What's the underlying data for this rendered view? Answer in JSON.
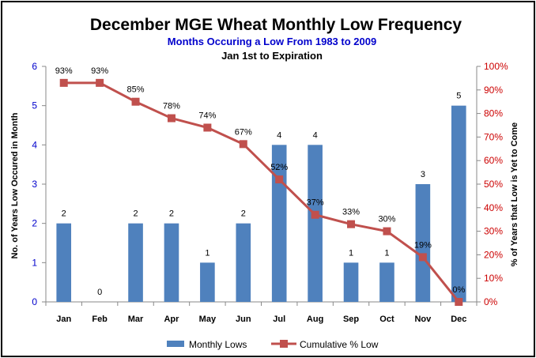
{
  "chart_data": {
    "type": "bar+line",
    "title": "December MGE Wheat Monthly Low Frequency",
    "subtitle": "Months Occuring  a Low From 1983  to 2009",
    "subtitle2": "Jan 1st to Expiration",
    "categories": [
      "Jan",
      "Feb",
      "Mar",
      "Apr",
      "May",
      "Jun",
      "Jul",
      "Aug",
      "Sep",
      "Oct",
      "Nov",
      "Dec"
    ],
    "series": [
      {
        "name": "Monthly Lows",
        "type": "bar",
        "axis": "left",
        "values": [
          2,
          0,
          2,
          2,
          1,
          2,
          4,
          4,
          1,
          1,
          3,
          5
        ],
        "labels": [
          "2",
          "0",
          "2",
          "2",
          "1",
          "2",
          "4",
          "4",
          "1",
          "1",
          "3",
          "5"
        ]
      },
      {
        "name": "Cumulative % Low",
        "type": "line",
        "axis": "right",
        "values": [
          93,
          93,
          85,
          78,
          74,
          67,
          52,
          37,
          33,
          30,
          19,
          0
        ],
        "labels": [
          "93%",
          "93%",
          "85%",
          "78%",
          "74%",
          "67%",
          "52%",
          "37%",
          "33%",
          "30%",
          "19%",
          "0%"
        ]
      }
    ],
    "ylabel": "No. of Years Low Occured in Month",
    "y2label": "% of Years that Low is Yet to Come",
    "ylim": [
      0,
      6
    ],
    "y2lim": [
      0,
      100
    ],
    "yticks": [
      "0",
      "1",
      "2",
      "3",
      "4",
      "5",
      "6"
    ],
    "y2ticks": [
      "0%",
      "10%",
      "20%",
      "30%",
      "40%",
      "50%",
      "60%",
      "70%",
      "80%",
      "90%",
      "100%"
    ],
    "legend_position": "bottom",
    "grid": false,
    "colors": {
      "bar": "#4f81bd",
      "line": "#c0504d",
      "left_axis": "#0000cc",
      "right_axis": "#cc0000",
      "subtitle": "#0000cc"
    }
  }
}
